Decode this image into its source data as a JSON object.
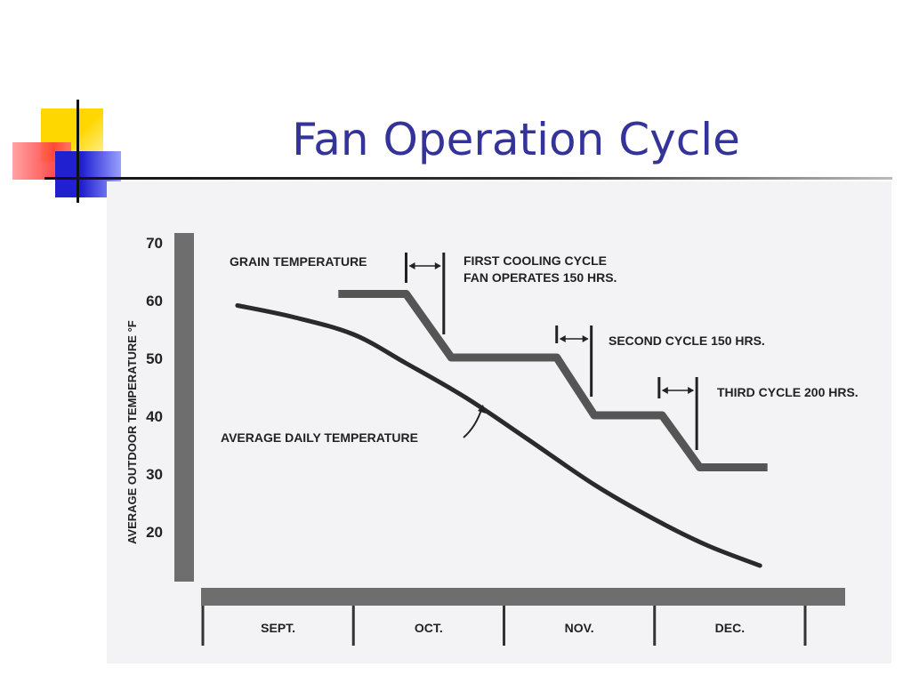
{
  "slide": {
    "title": "Fan Operation Cycle"
  },
  "chart_data": {
    "type": "line",
    "ylabel": "AVERAGE OUTDOOR TEMPERATURE °F",
    "xlabel": "",
    "categories": [
      "SEPT.",
      "OCT.",
      "NOV.",
      "DEC."
    ],
    "yticks": [
      20,
      30,
      40,
      50,
      60,
      70
    ],
    "ylim": [
      12,
      70
    ],
    "xlim": [
      0,
      4
    ],
    "grid": false,
    "series": [
      {
        "name": "AVERAGE DAILY TEMPERATURE",
        "points": [
          [
            0.23,
            59
          ],
          [
            0.6,
            57
          ],
          [
            1.0,
            54
          ],
          [
            1.35,
            49
          ],
          [
            1.75,
            43
          ],
          [
            2.15,
            36
          ],
          [
            2.6,
            28
          ],
          [
            3.0,
            22
          ],
          [
            3.35,
            17.5
          ],
          [
            3.7,
            14
          ]
        ]
      },
      {
        "name": "GRAIN TEMPERATURE",
        "points": [
          [
            0.9,
            61
          ],
          [
            1.35,
            61
          ],
          [
            1.65,
            50
          ],
          [
            2.35,
            50
          ],
          [
            2.6,
            40
          ],
          [
            3.05,
            40
          ],
          [
            3.3,
            31
          ],
          [
            3.75,
            31
          ]
        ]
      }
    ],
    "annotations": [
      {
        "text": "GRAIN TEMPERATURE"
      },
      {
        "text": "FIRST COOLING CYCLE"
      },
      {
        "text": "FAN OPERATES 150 HRS."
      },
      {
        "text": "SECOND CYCLE 150 HRS."
      },
      {
        "text": "THIRD CYCLE 200 HRS."
      },
      {
        "text": "AVERAGE DAILY TEMPERATURE"
      }
    ],
    "cycle_markers": [
      {
        "from": 1.35,
        "to": 1.6
      },
      {
        "from": 2.35,
        "to": 2.58
      },
      {
        "from": 3.03,
        "to": 3.28
      }
    ]
  }
}
